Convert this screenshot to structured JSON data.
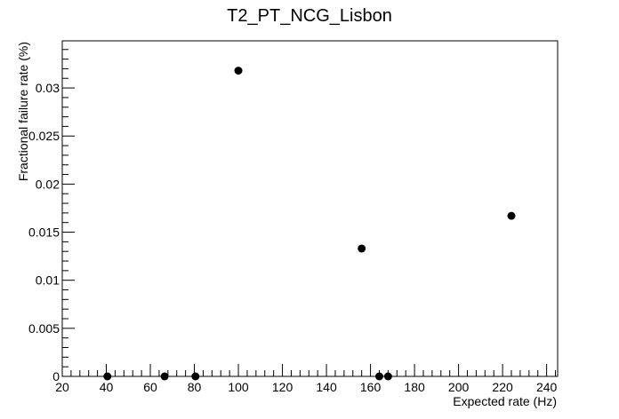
{
  "chart_data": {
    "type": "scatter",
    "title": "T2_PT_NCG_Lisbon",
    "xlabel": "Expected rate (Hz)",
    "ylabel": "Fractional failure rate (%)",
    "xlim": [
      20,
      245
    ],
    "ylim": [
      0,
      0.0349
    ],
    "x_ticks": [
      20,
      40,
      60,
      80,
      100,
      120,
      140,
      160,
      180,
      200,
      220,
      240
    ],
    "x_tick_labels": [
      "20",
      "40",
      "60",
      "80",
      "100",
      "120",
      "140",
      "160",
      "180",
      "200",
      "220",
      "240"
    ],
    "y_ticks": [
      0,
      0.005,
      0.01,
      0.015,
      0.02,
      0.025,
      0.03
    ],
    "y_tick_labels": [
      "0",
      "0.005",
      "0.01",
      "0.015",
      "0.02",
      "0.025",
      "0.03"
    ],
    "grid": false,
    "legend": "none",
    "marker_color": "#000000",
    "points": [
      {
        "x": 40.5,
        "y": 0
      },
      {
        "x": 66.5,
        "y": 0
      },
      {
        "x": 80.5,
        "y": 0
      },
      {
        "x": 100,
        "y": 0.0318
      },
      {
        "x": 156,
        "y": 0.0133
      },
      {
        "x": 164,
        "y": 0
      },
      {
        "x": 168,
        "y": 0
      },
      {
        "x": 224,
        "y": 0.0167
      }
    ]
  }
}
